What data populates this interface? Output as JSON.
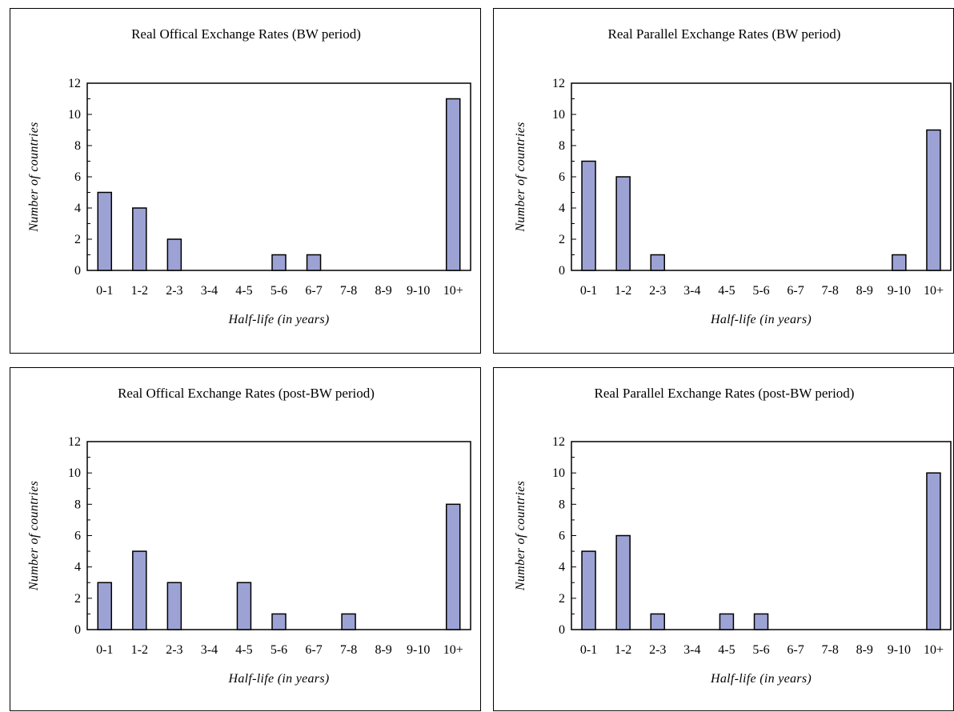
{
  "chart_data": [
    {
      "type": "bar",
      "title": "Real Offical Exchange Rates (BW period)",
      "xlabel": "Half-life (in years)",
      "ylabel": "Number of countries",
      "categories": [
        "0-1",
        "1-2",
        "2-3",
        "3-4",
        "4-5",
        "5-6",
        "6-7",
        "7-8",
        "8-9",
        "9-10",
        "10+"
      ],
      "values": [
        5,
        4,
        2,
        0,
        0,
        1,
        1,
        0,
        0,
        0,
        11
      ],
      "ylim": [
        0,
        12
      ],
      "yticks": [
        "0",
        "2",
        "4",
        "6",
        "8",
        "10",
        "12"
      ],
      "bar_color": "#9ca3d4",
      "grid": false
    },
    {
      "type": "bar",
      "title": "Real Parallel Exchange Rates (BW period)",
      "xlabel": "Half-life (in years)",
      "ylabel": "Number of countries",
      "categories": [
        "0-1",
        "1-2",
        "2-3",
        "3-4",
        "4-5",
        "5-6",
        "6-7",
        "7-8",
        "8-9",
        "9-10",
        "10+"
      ],
      "values": [
        7,
        6,
        1,
        0,
        0,
        0,
        0,
        0,
        0,
        1,
        9
      ],
      "ylim": [
        0,
        12
      ],
      "yticks": [
        "0",
        "2",
        "4",
        "6",
        "8",
        "10",
        "12"
      ],
      "bar_color": "#9ca3d4",
      "grid": false
    },
    {
      "type": "bar",
      "title": "Real Offical Exchange Rates (post-BW period)",
      "xlabel": "Half-life (in years)",
      "ylabel": "Number of countries",
      "categories": [
        "0-1",
        "1-2",
        "2-3",
        "3-4",
        "4-5",
        "5-6",
        "6-7",
        "7-8",
        "8-9",
        "9-10",
        "10+"
      ],
      "values": [
        3,
        5,
        3,
        0,
        3,
        1,
        0,
        1,
        0,
        0,
        8
      ],
      "ylim": [
        0,
        12
      ],
      "yticks": [
        "0",
        "2",
        "4",
        "6",
        "8",
        "10",
        "12"
      ],
      "bar_color": "#9ca3d4",
      "grid": false
    },
    {
      "type": "bar",
      "title": "Real Parallel Exchange Rates (post-BW period)",
      "xlabel": "Half-life (in years)",
      "ylabel": "Number of countries",
      "categories": [
        "0-1",
        "1-2",
        "2-3",
        "3-4",
        "4-5",
        "5-6",
        "6-7",
        "7-8",
        "8-9",
        "9-10",
        "10+"
      ],
      "values": [
        5,
        6,
        1,
        0,
        1,
        1,
        0,
        0,
        0,
        0,
        10
      ],
      "ylim": [
        0,
        12
      ],
      "yticks": [
        "0",
        "2",
        "4",
        "6",
        "8",
        "10",
        "12"
      ],
      "bar_color": "#9ca3d4",
      "grid": false
    }
  ]
}
